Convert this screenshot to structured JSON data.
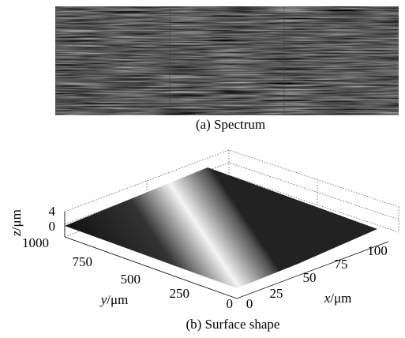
{
  "panels": [
    {
      "caption": "(a) Spectrum"
    },
    {
      "caption": "(b) Surface shape",
      "z_axis": {
        "var": "z",
        "unit": "/μm",
        "ticks": [
          "0",
          "4"
        ]
      },
      "y_axis": {
        "var": "y",
        "unit": "/μm",
        "ticks": [
          "1000",
          "750",
          "500",
          "250",
          "0"
        ]
      },
      "x_axis": {
        "var": "x",
        "unit": "/μm",
        "ticks": [
          "0",
          "25",
          "50",
          "75",
          "100"
        ]
      }
    }
  ]
}
